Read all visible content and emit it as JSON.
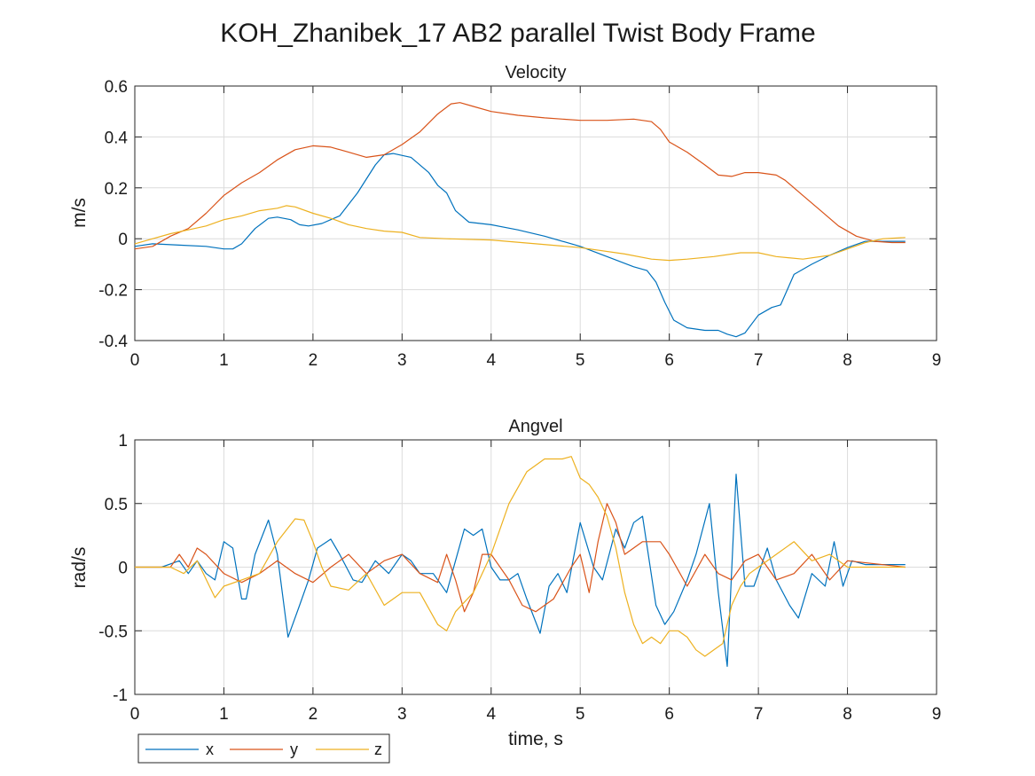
{
  "figure_title": "KOH_Zhanibek_17 AB2 parallel Twist Body Frame",
  "colors": {
    "x": "#0072BD",
    "y": "#D95319",
    "z": "#EDB120",
    "grid": "#dcdcdc",
    "axes": "#262626"
  },
  "legend": {
    "placement": "bottom-left",
    "entries": [
      "x",
      "y",
      "z"
    ]
  },
  "chart_data": [
    {
      "type": "line",
      "title": "Velocity",
      "xlabel": "",
      "ylabel": "m/s",
      "xlim": [
        0,
        9
      ],
      "ylim": [
        -0.4,
        0.6
      ],
      "xticks": [
        "0",
        "1",
        "2",
        "3",
        "4",
        "5",
        "6",
        "7",
        "8",
        "9"
      ],
      "yticks": [
        "-0.4",
        "-0.2",
        "0",
        "0.2",
        "0.4",
        "0.6"
      ],
      "grid": true,
      "series": [
        {
          "name": "x",
          "color": "#0072BD",
          "x": [
            0,
            0.2,
            0.5,
            0.8,
            1.0,
            1.1,
            1.2,
            1.35,
            1.5,
            1.6,
            1.75,
            1.85,
            1.95,
            2.1,
            2.3,
            2.5,
            2.7,
            2.8,
            2.9,
            3.1,
            3.3,
            3.4,
            3.5,
            3.6,
            3.75,
            4.0,
            4.3,
            4.6,
            5.0,
            5.3,
            5.6,
            5.75,
            5.85,
            5.95,
            6.05,
            6.2,
            6.4,
            6.55,
            6.65,
            6.75,
            6.85,
            7.0,
            7.15,
            7.25,
            7.4,
            7.6,
            7.8,
            8.0,
            8.2,
            8.4,
            8.65
          ],
          "y": [
            -0.03,
            -0.02,
            -0.025,
            -0.03,
            -0.04,
            -0.04,
            -0.02,
            0.04,
            0.08,
            0.085,
            0.075,
            0.055,
            0.05,
            0.06,
            0.09,
            0.18,
            0.29,
            0.33,
            0.335,
            0.32,
            0.26,
            0.21,
            0.18,
            0.11,
            0.065,
            0.055,
            0.035,
            0.01,
            -0.03,
            -0.07,
            -0.11,
            -0.125,
            -0.17,
            -0.25,
            -0.32,
            -0.35,
            -0.36,
            -0.36,
            -0.375,
            -0.385,
            -0.37,
            -0.3,
            -0.27,
            -0.26,
            -0.14,
            -0.1,
            -0.065,
            -0.035,
            -0.01,
            -0.01,
            -0.01
          ]
        },
        {
          "name": "y",
          "color": "#D95319",
          "x": [
            0,
            0.2,
            0.4,
            0.6,
            0.8,
            1.0,
            1.2,
            1.4,
            1.6,
            1.8,
            2.0,
            2.2,
            2.4,
            2.6,
            2.8,
            3.0,
            3.2,
            3.4,
            3.55,
            3.65,
            3.8,
            4.0,
            4.3,
            4.6,
            5.0,
            5.3,
            5.6,
            5.8,
            5.9,
            6.0,
            6.2,
            6.4,
            6.55,
            6.7,
            6.85,
            7.0,
            7.2,
            7.3,
            7.5,
            7.7,
            7.9,
            8.1,
            8.3,
            8.5,
            8.65
          ],
          "y": [
            -0.04,
            -0.03,
            0.01,
            0.04,
            0.1,
            0.17,
            0.22,
            0.26,
            0.31,
            0.35,
            0.365,
            0.36,
            0.34,
            0.32,
            0.33,
            0.37,
            0.42,
            0.49,
            0.53,
            0.535,
            0.52,
            0.5,
            0.485,
            0.475,
            0.465,
            0.465,
            0.47,
            0.46,
            0.43,
            0.38,
            0.34,
            0.29,
            0.25,
            0.245,
            0.26,
            0.26,
            0.25,
            0.23,
            0.17,
            0.11,
            0.05,
            0.01,
            -0.01,
            -0.015,
            -0.015
          ]
        },
        {
          "name": "z",
          "color": "#EDB120",
          "x": [
            0,
            0.2,
            0.4,
            0.6,
            0.8,
            1.0,
            1.2,
            1.4,
            1.6,
            1.7,
            1.8,
            2.0,
            2.2,
            2.4,
            2.6,
            2.8,
            3.0,
            3.2,
            3.5,
            4.0,
            4.5,
            5.0,
            5.5,
            5.8,
            6.0,
            6.2,
            6.5,
            6.8,
            7.0,
            7.2,
            7.5,
            7.8,
            8.0,
            8.2,
            8.4,
            8.65
          ],
          "y": [
            -0.02,
            0.0,
            0.02,
            0.035,
            0.05,
            0.075,
            0.09,
            0.11,
            0.12,
            0.13,
            0.125,
            0.1,
            0.08,
            0.055,
            0.04,
            0.03,
            0.025,
            0.005,
            0.0,
            -0.005,
            -0.02,
            -0.035,
            -0.06,
            -0.08,
            -0.085,
            -0.08,
            -0.07,
            -0.055,
            -0.055,
            -0.07,
            -0.08,
            -0.065,
            -0.04,
            -0.015,
            0.0,
            0.005
          ]
        }
      ]
    },
    {
      "type": "line",
      "title": "Angvel",
      "xlabel": "time, s",
      "ylabel": "rad/s",
      "xlim": [
        0,
        9
      ],
      "ylim": [
        -1,
        1
      ],
      "xticks": [
        "0",
        "1",
        "2",
        "3",
        "4",
        "5",
        "6",
        "7",
        "8",
        "9"
      ],
      "yticks": [
        "-1",
        "-0.5",
        "0",
        "0.5",
        "1"
      ],
      "grid": true,
      "series": [
        {
          "name": "x",
          "color": "#0072BD",
          "x": [
            0,
            0.3,
            0.5,
            0.6,
            0.7,
            0.8,
            0.9,
            1.0,
            1.1,
            1.2,
            1.25,
            1.35,
            1.5,
            1.6,
            1.72,
            1.85,
            1.95,
            2.05,
            2.2,
            2.3,
            2.45,
            2.55,
            2.7,
            2.85,
            3.0,
            3.1,
            3.2,
            3.35,
            3.5,
            3.6,
            3.7,
            3.8,
            3.9,
            4.0,
            4.1,
            4.2,
            4.3,
            4.4,
            4.55,
            4.65,
            4.75,
            4.85,
            5.0,
            5.15,
            5.25,
            5.4,
            5.5,
            5.6,
            5.7,
            5.85,
            5.95,
            6.05,
            6.2,
            6.3,
            6.45,
            6.55,
            6.65,
            6.75,
            6.85,
            6.95,
            7.1,
            7.2,
            7.35,
            7.45,
            7.6,
            7.75,
            7.85,
            7.95,
            8.05,
            8.2,
            8.65
          ],
          "y": [
            0.0,
            0.0,
            0.05,
            -0.05,
            0.05,
            -0.05,
            -0.1,
            0.2,
            0.15,
            -0.25,
            -0.25,
            0.1,
            0.37,
            0.1,
            -0.55,
            -0.3,
            -0.1,
            0.15,
            0.22,
            0.1,
            -0.1,
            -0.12,
            0.05,
            -0.05,
            0.1,
            0.05,
            -0.05,
            -0.05,
            -0.2,
            0.05,
            0.3,
            0.25,
            0.3,
            0.0,
            -0.1,
            -0.1,
            -0.05,
            -0.25,
            -0.52,
            -0.15,
            -0.05,
            -0.2,
            0.35,
            0.0,
            -0.1,
            0.3,
            0.15,
            0.35,
            0.4,
            -0.3,
            -0.45,
            -0.35,
            -0.1,
            0.1,
            0.5,
            -0.2,
            -0.78,
            0.73,
            -0.15,
            -0.15,
            0.15,
            -0.1,
            -0.3,
            -0.4,
            -0.05,
            -0.15,
            0.2,
            -0.15,
            0.05,
            0.02,
            0.02
          ]
        },
        {
          "name": "y",
          "color": "#D95319",
          "x": [
            0,
            0.4,
            0.5,
            0.6,
            0.7,
            0.8,
            1.0,
            1.2,
            1.4,
            1.6,
            1.8,
            2.0,
            2.2,
            2.4,
            2.6,
            2.8,
            3.0,
            3.2,
            3.4,
            3.5,
            3.6,
            3.7,
            3.8,
            3.9,
            4.0,
            4.2,
            4.35,
            4.5,
            4.7,
            4.9,
            5.0,
            5.1,
            5.2,
            5.3,
            5.4,
            5.5,
            5.7,
            5.9,
            6.0,
            6.2,
            6.4,
            6.55,
            6.7,
            6.85,
            7.0,
            7.2,
            7.4,
            7.6,
            7.8,
            8.0,
            8.65
          ],
          "y": [
            0.0,
            0.0,
            0.1,
            0.0,
            0.15,
            0.1,
            -0.05,
            -0.12,
            -0.05,
            0.05,
            -0.05,
            -0.12,
            0.0,
            0.1,
            -0.05,
            0.05,
            0.1,
            -0.05,
            -0.12,
            0.1,
            -0.1,
            -0.35,
            -0.2,
            0.1,
            0.1,
            -0.1,
            -0.3,
            -0.35,
            -0.25,
            0.0,
            0.1,
            -0.2,
            0.2,
            0.5,
            0.35,
            0.1,
            0.2,
            0.2,
            0.1,
            -0.15,
            0.1,
            -0.05,
            -0.1,
            0.05,
            0.1,
            -0.1,
            -0.05,
            0.1,
            -0.1,
            0.05,
            0.0
          ]
        },
        {
          "name": "z",
          "color": "#EDB120",
          "x": [
            0,
            0.4,
            0.55,
            0.7,
            0.9,
            1.0,
            1.2,
            1.4,
            1.6,
            1.8,
            1.9,
            2.0,
            2.1,
            2.2,
            2.4,
            2.6,
            2.8,
            3.0,
            3.2,
            3.4,
            3.5,
            3.6,
            3.8,
            4.0,
            4.2,
            4.4,
            4.6,
            4.8,
            4.9,
            5.0,
            5.1,
            5.2,
            5.3,
            5.4,
            5.5,
            5.6,
            5.7,
            5.8,
            5.9,
            6.0,
            6.1,
            6.2,
            6.3,
            6.4,
            6.5,
            6.6,
            6.7,
            6.8,
            6.9,
            7.0,
            7.2,
            7.4,
            7.6,
            7.8,
            8.0,
            8.65
          ],
          "y": [
            0.0,
            0.0,
            -0.05,
            0.05,
            -0.24,
            -0.15,
            -0.1,
            -0.05,
            0.2,
            0.38,
            0.37,
            0.2,
            0.0,
            -0.15,
            -0.18,
            -0.05,
            -0.3,
            -0.2,
            -0.2,
            -0.45,
            -0.5,
            -0.35,
            -0.2,
            0.1,
            0.5,
            0.75,
            0.85,
            0.85,
            0.87,
            0.7,
            0.65,
            0.55,
            0.4,
            0.15,
            -0.2,
            -0.45,
            -0.6,
            -0.55,
            -0.6,
            -0.5,
            -0.5,
            -0.55,
            -0.65,
            -0.7,
            -0.65,
            -0.6,
            -0.3,
            -0.15,
            -0.05,
            0.0,
            0.1,
            0.2,
            0.05,
            0.1,
            0.0,
            0.0
          ]
        }
      ]
    }
  ]
}
